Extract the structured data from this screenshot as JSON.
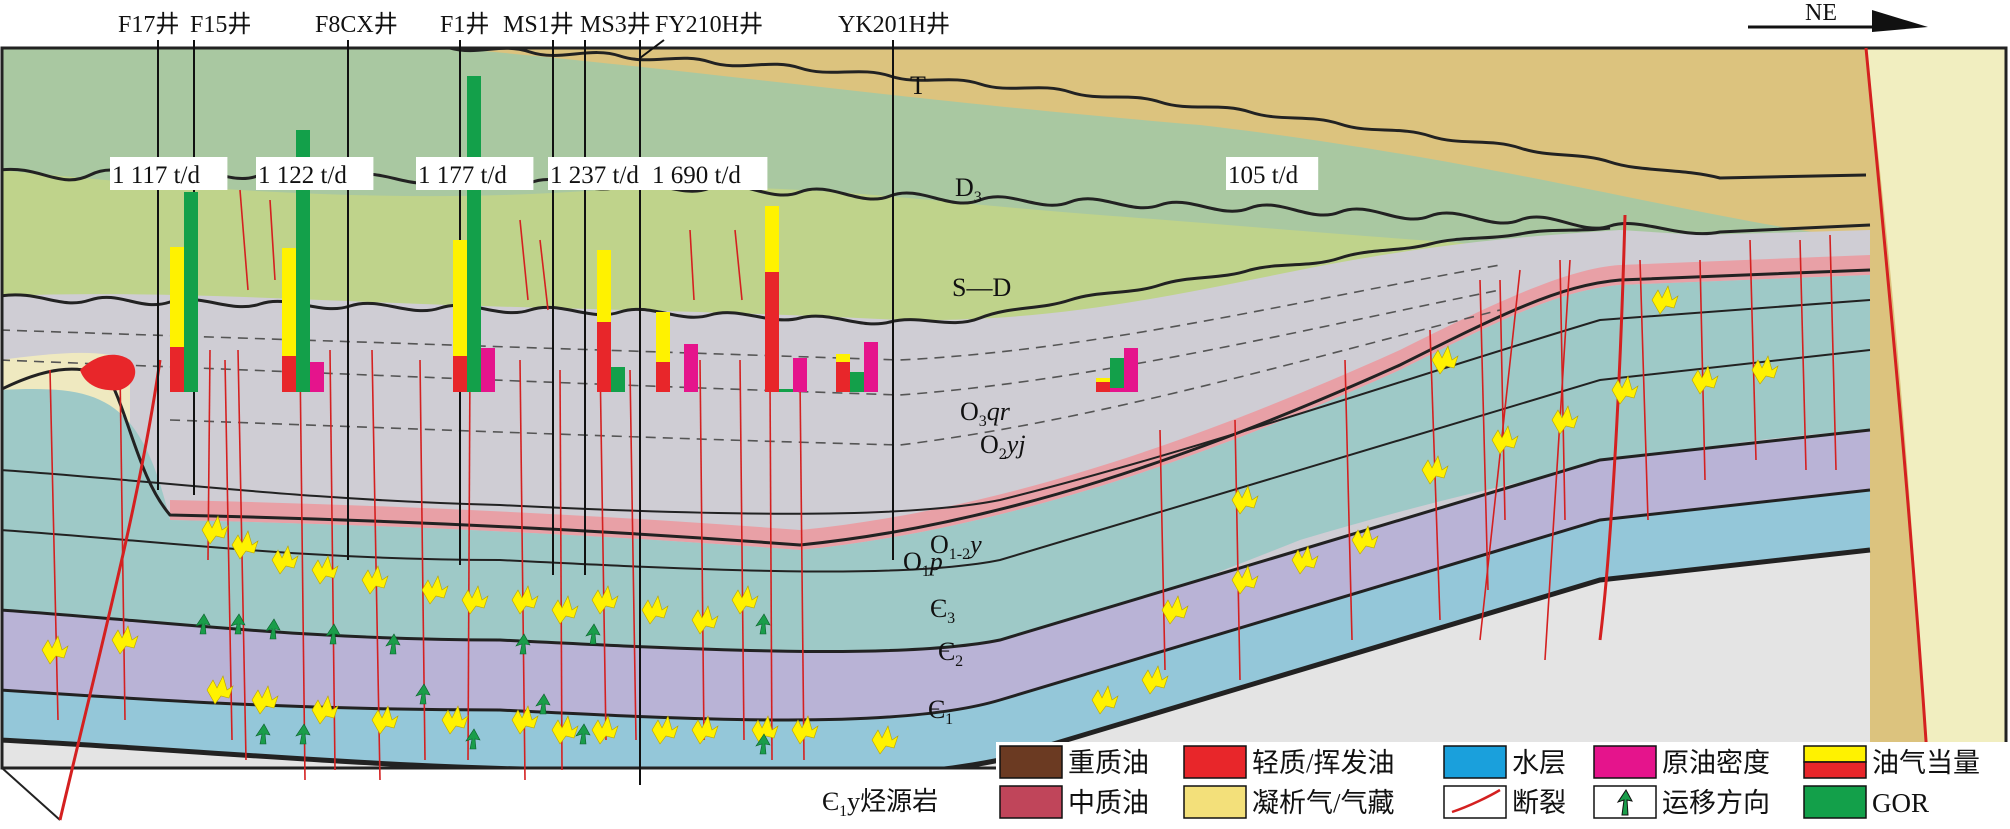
{
  "direction": "NE",
  "wells": [
    {
      "id": "F17",
      "name": "F17井"
    },
    {
      "id": "F15",
      "name": "F15井"
    },
    {
      "id": "F8CX",
      "name": "F8CX井"
    },
    {
      "id": "F1",
      "name": "F1井"
    },
    {
      "id": "MS1",
      "name": "MS1井"
    },
    {
      "id": "MS3",
      "name": "MS3井"
    },
    {
      "id": "FY210H",
      "name": "FY210H井"
    },
    {
      "id": "YK201H",
      "name": "YK201H井"
    }
  ],
  "production_labels": [
    "1 117 t/d",
    "1 122 t/d",
    "1 177 t/d",
    "1 237 t/d",
    "1 690 t/d",
    "105 t/d"
  ],
  "strata": {
    "T": "T",
    "D3": "D",
    "D3_sub": "3",
    "SD": "S—D",
    "O3qr": "O",
    "O3qr_sub": "3",
    "O3qr_rest": "qr",
    "O2yj": "O",
    "O2yj_sub": "2",
    "O2yj_rest": "yj",
    "O1p": "O",
    "O1p_sub": "1",
    "O1p_rest": "p",
    "O12y": "O",
    "O12y_sub": "1-2",
    "O12y_rest": "y",
    "C3": "Є",
    "C3_sub": "3",
    "C2": "Є",
    "C2_sub": "2",
    "C1": "Є",
    "C1_sub": "1",
    "source_rock": "Є",
    "source_rock_sub": "1",
    "source_rock_rest": "y烃源岩"
  },
  "legend": [
    {
      "id": "heavy",
      "label": "重质油",
      "color": "#6b3a22"
    },
    {
      "id": "light",
      "label": "轻质/挥发油",
      "color": "#e8262a"
    },
    {
      "id": "water",
      "label": "水层",
      "color": "#1aa0dc"
    },
    {
      "id": "density",
      "label": "原油密度",
      "color": "#e5148c"
    },
    {
      "id": "equiv",
      "label": "油气当量",
      "color": "#fff200"
    },
    {
      "id": "medium",
      "label": "中质油",
      "color": "#c0455a"
    },
    {
      "id": "condensate",
      "label": "凝析气/气藏",
      "color": "#f3e07a"
    },
    {
      "id": "fault",
      "label": "断裂",
      "color": "#d42020"
    },
    {
      "id": "migration",
      "label": "运移方向",
      "color": "#1a9d4a"
    },
    {
      "id": "gor",
      "label": "GOR",
      "color": "#13a04a"
    }
  ],
  "colors": {
    "T": "#dcc37e",
    "D3": "#a9c8a1",
    "SD": "#bfd38b",
    "O3": "#cfcdd4",
    "O2": "#e8a0a6",
    "O1": "#9ec9c7",
    "C3": "#a7cfcb",
    "C2": "#b9b3d6",
    "C1": "#94c7d9"
  }
}
